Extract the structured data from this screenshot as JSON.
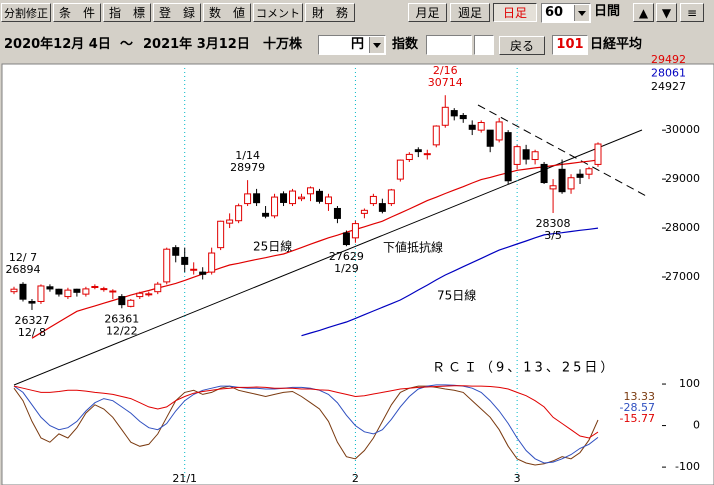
{
  "toolbar": {
    "buttons": [
      "分割修正",
      "条　件",
      "指　標",
      "登　録",
      "数　値",
      "コメント",
      "財　務"
    ],
    "periods": [
      {
        "label": "月足",
        "active": false
      },
      {
        "label": "週足",
        "active": false
      },
      {
        "label": "日足",
        "active": true
      }
    ],
    "days": "60",
    "days_unit": "日間",
    "nav": [
      "▲",
      "▼",
      "≡"
    ]
  },
  "range_bar": {
    "from": "2020年12月 4日",
    "sep": "～",
    "to": "2021年 3月12日",
    "volume_unit": "十万株",
    "currency": "円",
    "index": "指数",
    "back": "戻る",
    "code": "101",
    "name": "日経平均"
  },
  "chart_data": [
    {
      "type": "candlestick",
      "categories": [
        null,
        null,
        null,
        null,
        null,
        null,
        null,
        null,
        null,
        null,
        null,
        null,
        null,
        null,
        null,
        null,
        null,
        null,
        null,
        "21/1",
        null,
        null,
        null,
        null,
        null,
        null,
        null,
        null,
        null,
        null,
        null,
        null,
        null,
        null,
        null,
        null,
        null,
        null,
        "2",
        null,
        null,
        null,
        null,
        null,
        null,
        null,
        null,
        null,
        null,
        null,
        null,
        null,
        null,
        null,
        null,
        null,
        "3",
        null,
        null,
        null,
        null,
        null,
        null,
        null,
        null,
        null
      ],
      "open": [
        26700,
        26850,
        26500,
        26500,
        26800,
        26750,
        26600,
        26750,
        26650,
        26800,
        26750,
        26700,
        26600,
        26400,
        26600,
        26650,
        26700,
        26900,
        27600,
        27400,
        27150,
        27100,
        27100,
        27600,
        28100,
        28150,
        28500,
        28700,
        28300,
        28250,
        28700,
        28500,
        28600,
        28700,
        28750,
        28500,
        28400,
        27900,
        27800,
        28300,
        28500,
        28500,
        28500,
        29000,
        29400,
        29600,
        29500,
        29700,
        30100,
        30400,
        30300,
        30100,
        30000,
        30000,
        29800,
        29950,
        29300,
        29600,
        29400,
        29300,
        28800,
        29200,
        28800,
        29100,
        29100,
        29300
      ],
      "high": [
        26800,
        26894,
        26550,
        26850,
        26850,
        26760,
        26780,
        26760,
        26800,
        26850,
        26800,
        26750,
        26650,
        26550,
        26700,
        26700,
        26900,
        27600,
        27650,
        27600,
        27300,
        27200,
        27600,
        28150,
        28300,
        28500,
        28979,
        28800,
        28450,
        28700,
        28750,
        28800,
        28700,
        28850,
        28800,
        28700,
        28450,
        27950,
        28150,
        28400,
        28700,
        28600,
        28800,
        29400,
        29550,
        29650,
        29600,
        30100,
        30714,
        30450,
        30350,
        30200,
        30200,
        30000,
        30250,
        30000,
        29700,
        29700,
        29600,
        29350,
        29000,
        29400,
        29100,
        29200,
        29250,
        29750
      ],
      "low": [
        26650,
        26500,
        26327,
        26450,
        26700,
        26600,
        26550,
        26600,
        26600,
        26750,
        26700,
        26550,
        26361,
        26380,
        26550,
        26600,
        26650,
        26850,
        27300,
        27100,
        27050,
        26950,
        27050,
        27550,
        28000,
        28100,
        28450,
        28450,
        28200,
        28200,
        28450,
        28450,
        28550,
        28550,
        28500,
        28350,
        28100,
        27629,
        27700,
        28200,
        28450,
        28300,
        28450,
        28950,
        29350,
        29450,
        29400,
        29650,
        30050,
        30200,
        30150,
        29900,
        29950,
        29550,
        29750,
        28900,
        29200,
        29300,
        29300,
        28900,
        28308,
        28700,
        28700,
        28900,
        29000,
        29250
      ],
      "close": [
        26751,
        26547,
        26467,
        26817,
        26756,
        26652,
        26732,
        26687,
        26757,
        26806,
        26763,
        26714,
        26436,
        26524,
        26668,
        26656,
        26854,
        27568,
        27444,
        27258,
        27158,
        27055,
        27490,
        28139,
        28164,
        28456,
        28698,
        28519,
        28242,
        28633,
        28523,
        28756,
        28631,
        28822,
        28546,
        28635,
        28197,
        27663,
        28091,
        28362,
        28646,
        28341,
        28779,
        29388,
        29505,
        29562,
        29520,
        30084,
        30467,
        30292,
        30236,
        30017,
        30156,
        29671,
        30168,
        28966,
        29663,
        29408,
        29559,
        28930,
        28864,
        28743,
        29028,
        29036,
        29212,
        29717
      ],
      "up_color": "#e00000",
      "down_color": "#000000",
      "series": [
        {
          "color": "#e00000",
          "values": [
            null,
            null,
            25750,
            25860,
            25970,
            26080,
            26190,
            26300,
            26355,
            26410,
            26465,
            26520,
            26575,
            26630,
            26680,
            26725,
            26775,
            26820,
            26870,
            26930,
            26995,
            27060,
            27120,
            27185,
            27245,
            27280,
            27320,
            27360,
            27395,
            27435,
            27470,
            27535,
            27600,
            27670,
            27735,
            27800,
            27855,
            27915,
            27970,
            28025,
            28085,
            28140,
            28225,
            28305,
            28390,
            28475,
            28560,
            28630,
            28705,
            28775,
            28845,
            28920,
            28990,
            29035,
            29085,
            29130,
            29180,
            29205,
            29230,
            29250,
            29275,
            29300,
            29320,
            29345,
            29365,
            29390
          ]
        },
        {
          "color": "#0000c0",
          "values": [
            null,
            null,
            null,
            null,
            null,
            null,
            null,
            null,
            null,
            null,
            null,
            null,
            null,
            null,
            null,
            null,
            null,
            null,
            null,
            null,
            null,
            null,
            null,
            null,
            null,
            null,
            null,
            null,
            null,
            null,
            null,
            null,
            25800,
            25855,
            25910,
            25970,
            26025,
            26080,
            26155,
            26230,
            26305,
            26380,
            26455,
            26530,
            26630,
            26735,
            26835,
            26940,
            27040,
            27125,
            27210,
            27295,
            27380,
            27465,
            27550,
            27610,
            27675,
            27735,
            27800,
            27860,
            27885,
            27905,
            27930,
            27955,
            27975,
            28000
          ]
        }
      ],
      "annotations": [
        "25日線",
        "下値抵抗線",
        "75日線"
      ],
      "point_labels": [
        null,
        {
          "date": "12/ 7",
          "at": "high",
          "color": "#000000"
        },
        {
          "date": "12/ 8",
          "at": "low",
          "color": "#000000"
        },
        null,
        null,
        null,
        null,
        null,
        null,
        null,
        null,
        null,
        {
          "date": "12/22",
          "at": "low",
          "color": "#000000"
        },
        null,
        null,
        null,
        null,
        null,
        null,
        null,
        null,
        null,
        null,
        null,
        null,
        null,
        {
          "date": "1/14",
          "at": "high",
          "color": "#000000"
        },
        null,
        null,
        null,
        null,
        null,
        null,
        null,
        null,
        null,
        null,
        {
          "date": "1/29",
          "at": "low",
          "color": "#000000"
        },
        null,
        null,
        null,
        null,
        null,
        null,
        null,
        null,
        null,
        null,
        {
          "date": "2/16",
          "at": "high",
          "color": "#e00000"
        },
        null,
        null,
        null,
        null,
        null,
        null,
        null,
        null,
        null,
        null,
        null,
        {
          "date": "3/5",
          "at": "low",
          "color": "#000000"
        },
        null,
        null,
        null,
        null,
        null
      ],
      "side_labels": [
        {
          "value": 29492,
          "color": "#e00000"
        },
        {
          "value": 28061,
          "color": "#0000c0"
        },
        {
          "value": 24927,
          "color": "#000000"
        }
      ],
      "ylim": [
        25100,
        31270
      ],
      "yticks": [
        27000,
        28000,
        29000,
        30000
      ],
      "grid": true
    },
    {
      "type": "line",
      "title": "ＲＣＩ（9、13、25日）",
      "series": [
        {
          "color": "#7a3a10",
          "values": [
            90,
            60,
            10,
            -30,
            -40,
            -20,
            -30,
            -5,
            30,
            50,
            40,
            20,
            -10,
            -40,
            -50,
            -45,
            -20,
            20,
            60,
            80,
            85,
            75,
            80,
            90,
            95,
            85,
            80,
            75,
            70,
            75,
            80,
            82,
            70,
            55,
            40,
            10,
            -40,
            -75,
            -80,
            -60,
            -30,
            10,
            50,
            80,
            90,
            95,
            95,
            92,
            88,
            85,
            80,
            60,
            40,
            20,
            -10,
            -50,
            -80,
            -90,
            -95,
            -92,
            -85,
            -75,
            -80,
            -65,
            -35,
            13.33
          ]
        },
        {
          "color": "#3050c0",
          "values": [
            95,
            80,
            50,
            20,
            0,
            -10,
            -5,
            10,
            35,
            55,
            65,
            60,
            45,
            30,
            10,
            -5,
            -10,
            5,
            35,
            60,
            75,
            85,
            90,
            95,
            95,
            92,
            90,
            90,
            88,
            88,
            90,
            92,
            92,
            90,
            85,
            75,
            55,
            25,
            0,
            -15,
            -20,
            -10,
            15,
            45,
            70,
            88,
            95,
            98,
            98,
            97,
            95,
            90,
            80,
            60,
            35,
            5,
            -30,
            -60,
            -80,
            -90,
            -88,
            -80,
            -70,
            -55,
            -45,
            -28.57
          ]
        },
        {
          "color": "#e00000",
          "values": [
            95,
            90,
            85,
            80,
            80,
            82,
            85,
            85,
            83,
            80,
            78,
            75,
            70,
            65,
            55,
            45,
            40,
            45,
            60,
            70,
            78,
            82,
            85,
            88,
            90,
            92,
            92,
            93,
            92,
            90,
            90,
            90,
            88,
            88,
            86,
            85,
            80,
            75,
            70,
            72,
            76,
            80,
            84,
            88,
            90,
            92,
            93,
            94,
            95,
            96,
            96,
            95,
            95,
            94,
            92,
            88,
            80,
            72,
            60,
            45,
            20,
            5,
            -10,
            -25,
            -30,
            -15.77
          ]
        }
      ],
      "ylim": [
        -119,
        129
      ],
      "yticks": [
        -100,
        0,
        100
      ]
    }
  ]
}
